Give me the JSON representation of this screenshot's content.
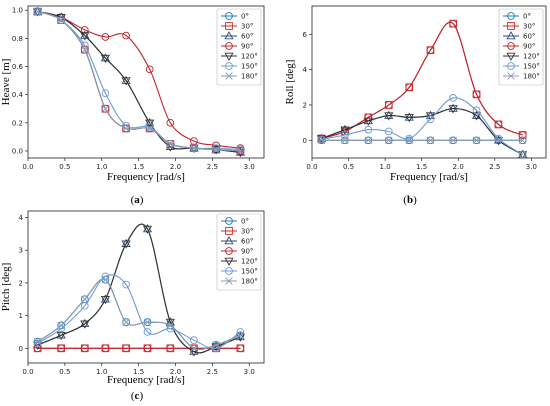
{
  "colors": {
    "0": "#1f77b4",
    "30": "#d62728",
    "60": "#2b4a77",
    "90": "#c0262d",
    "120": "#333333",
    "150": "#6b9bd6",
    "180": "#8a9bb5"
  },
  "chart_data": [
    {
      "id": "a",
      "type": "line",
      "panel_label": "a",
      "xlabel": "Frequency [rad/s]",
      "ylabel": "Heave [m]",
      "xlim": [
        0,
        3.2
      ],
      "ylim": [
        -0.05,
        1.03
      ],
      "xticks": [
        0.0,
        0.5,
        1.0,
        1.5,
        2.0,
        2.5,
        3.0
      ],
      "xtick_labels": [
        "0.0",
        "0.5",
        "1.0",
        "1.5",
        "2.0",
        "2.5",
        "3.0"
      ],
      "yticks": [
        0.0,
        0.2,
        0.4,
        0.6,
        0.8,
        1.0
      ],
      "ytick_labels": [
        "0.0",
        "0.2",
        "0.4",
        "0.6",
        "0.8",
        "1.0"
      ],
      "legend": "top-right",
      "x": [
        0.13,
        0.45,
        0.77,
        1.05,
        1.33,
        1.65,
        1.93,
        2.25,
        2.55,
        2.88
      ],
      "series": [
        {
          "name": "0°",
          "marker": "circle",
          "color_key": "0",
          "values": [
            0.99,
            0.93,
            0.72,
            0.3,
            0.16,
            0.16,
            0.05,
            0.02,
            0.01,
            0.0
          ]
        },
        {
          "name": "30°",
          "marker": "square",
          "color_key": "30",
          "values": [
            0.99,
            0.93,
            0.72,
            0.3,
            0.16,
            0.16,
            0.05,
            0.02,
            0.01,
            0.0
          ]
        },
        {
          "name": "60°",
          "marker": "triangle",
          "color_key": "60",
          "values": [
            0.99,
            0.95,
            0.82,
            0.66,
            0.5,
            0.2,
            0.03,
            0.02,
            0.01,
            -0.01
          ]
        },
        {
          "name": "90°",
          "marker": "circle",
          "color_key": "90",
          "values": [
            0.99,
            0.95,
            0.86,
            0.81,
            0.82,
            0.58,
            0.2,
            0.07,
            0.04,
            0.02
          ]
        },
        {
          "name": "120°",
          "marker": "tri-down",
          "color_key": "120",
          "values": [
            0.99,
            0.95,
            0.82,
            0.66,
            0.5,
            0.2,
            0.03,
            0.02,
            0.01,
            -0.01
          ]
        },
        {
          "name": "150°",
          "marker": "circle",
          "color_key": "150",
          "values": [
            0.99,
            0.93,
            0.75,
            0.41,
            0.18,
            0.17,
            0.05,
            0.02,
            0.02,
            0.01
          ]
        },
        {
          "name": "180°",
          "marker": "x",
          "color_key": "180",
          "values": [
            0.99,
            0.93,
            0.72,
            0.3,
            0.16,
            0.16,
            0.05,
            0.02,
            0.01,
            0.0
          ]
        }
      ]
    },
    {
      "id": "b",
      "type": "line",
      "panel_label": "b",
      "xlabel": "Frequency [rad/s]",
      "ylabel": "Roll [deg]",
      "xlim": [
        0,
        3.2
      ],
      "ylim": [
        -1.0,
        7.6
      ],
      "xticks": [
        0.0,
        0.5,
        1.0,
        1.5,
        2.0,
        2.5,
        3.0
      ],
      "xtick_labels": [
        "0.0",
        "0.5",
        "1.0",
        "1.5",
        "2.0",
        "2.5",
        "3.0"
      ],
      "yticks": [
        0,
        2,
        4,
        6
      ],
      "ytick_labels": [
        "0",
        "2",
        "4",
        "6"
      ],
      "legend": "top-right",
      "x": [
        0.13,
        0.45,
        0.77,
        1.05,
        1.33,
        1.62,
        1.93,
        2.25,
        2.55,
        2.88
      ],
      "series": [
        {
          "name": "0°",
          "marker": "circle",
          "color_key": "0",
          "values": [
            0.0,
            0.0,
            0.0,
            0.0,
            0.0,
            0.0,
            0.0,
            0.0,
            0.0,
            0.0
          ]
        },
        {
          "name": "30°",
          "marker": "square",
          "color_key": "30",
          "values": [
            0.1,
            0.5,
            1.3,
            2.0,
            3.0,
            5.1,
            6.6,
            2.6,
            0.9,
            0.3
          ]
        },
        {
          "name": "60°",
          "marker": "triangle",
          "color_key": "60",
          "values": [
            0.1,
            0.6,
            1.1,
            1.4,
            1.3,
            1.4,
            1.8,
            1.4,
            0.0,
            -0.8
          ]
        },
        {
          "name": "90°",
          "marker": "circle",
          "color_key": "90",
          "values": [
            0.1,
            0.5,
            1.3,
            2.0,
            3.0,
            5.1,
            6.6,
            2.6,
            0.9,
            0.3
          ]
        },
        {
          "name": "120°",
          "marker": "tri-down",
          "color_key": "120",
          "values": [
            0.1,
            0.6,
            1.1,
            1.4,
            1.3,
            1.4,
            1.8,
            1.4,
            0.0,
            -0.8
          ]
        },
        {
          "name": "150°",
          "marker": "circle",
          "color_key": "150",
          "values": [
            0.05,
            0.3,
            0.6,
            0.5,
            0.1,
            1.2,
            2.4,
            1.7,
            0.1,
            -0.8
          ]
        },
        {
          "name": "180°",
          "marker": "x",
          "color_key": "180",
          "values": [
            0.0,
            0.0,
            0.0,
            0.0,
            0.0,
            0.0,
            0.0,
            0.0,
            0.0,
            0.0
          ]
        }
      ]
    },
    {
      "id": "c",
      "type": "line",
      "panel_label": "c",
      "xlabel": "Frequency [rad/s]",
      "ylabel": "Pitch [deg]",
      "xlim": [
        0,
        3.2
      ],
      "ylim": [
        -0.45,
        4.2
      ],
      "xticks": [
        0.0,
        0.5,
        1.0,
        1.5,
        2.0,
        2.5,
        3.0
      ],
      "xtick_labels": [
        "0.0",
        "0.5",
        "1.0",
        "1.5",
        "2.0",
        "2.5",
        "3.0"
      ],
      "yticks": [
        0,
        1,
        2,
        3,
        4
      ],
      "ytick_labels": [
        "0",
        "1",
        "2",
        "3",
        "4"
      ],
      "legend": "top-right",
      "x": [
        0.13,
        0.45,
        0.77,
        1.05,
        1.33,
        1.62,
        1.93,
        2.25,
        2.55,
        2.88
      ],
      "series": [
        {
          "name": "0°",
          "marker": "circle",
          "color_key": "0",
          "values": [
            0.2,
            0.7,
            1.5,
            2.1,
            0.8,
            0.8,
            0.7,
            0.0,
            0.1,
            0.4
          ]
        },
        {
          "name": "30°",
          "marker": "square",
          "color_key": "30",
          "values": [
            0.0,
            0.0,
            0.0,
            0.0,
            0.0,
            0.0,
            0.0,
            0.0,
            0.0,
            0.0
          ]
        },
        {
          "name": "60°",
          "marker": "triangle",
          "color_key": "60",
          "values": [
            0.1,
            0.4,
            0.75,
            1.5,
            3.2,
            3.65,
            0.8,
            -0.1,
            0.05,
            0.35
          ]
        },
        {
          "name": "90°",
          "marker": "circle",
          "color_key": "90",
          "values": [
            0.0,
            0.0,
            0.0,
            0.0,
            0.0,
            0.0,
            0.0,
            0.0,
            0.0,
            0.0
          ]
        },
        {
          "name": "120°",
          "marker": "tri-down",
          "color_key": "120",
          "values": [
            0.1,
            0.4,
            0.75,
            1.5,
            3.2,
            3.65,
            0.8,
            -0.1,
            0.05,
            0.35
          ]
        },
        {
          "name": "150°",
          "marker": "circle",
          "color_key": "150",
          "values": [
            0.15,
            0.6,
            1.3,
            2.2,
            1.95,
            0.5,
            0.6,
            0.25,
            0.0,
            0.5
          ]
        },
        {
          "name": "180°",
          "marker": "x",
          "color_key": "180",
          "values": [
            0.2,
            0.7,
            1.5,
            2.1,
            0.8,
            0.8,
            0.7,
            0.0,
            0.1,
            0.4
          ]
        }
      ]
    }
  ]
}
